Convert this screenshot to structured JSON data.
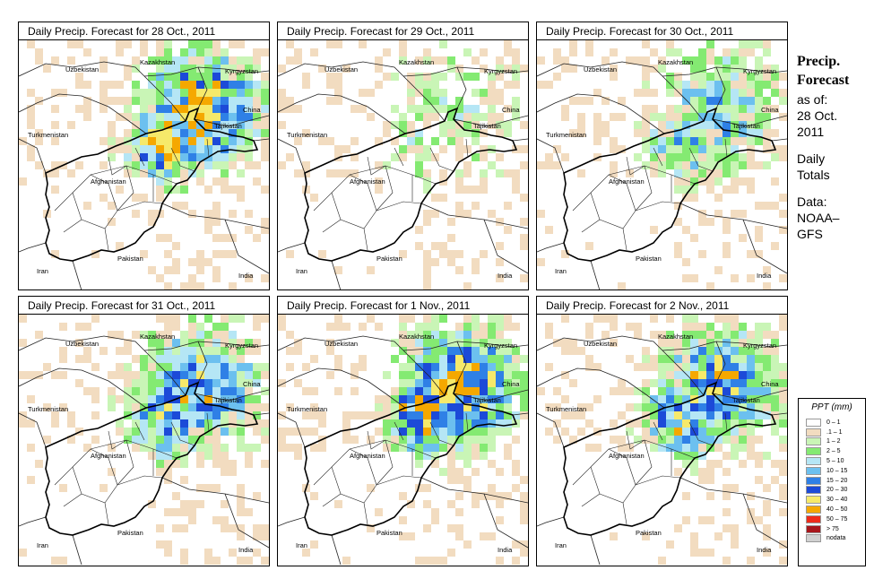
{
  "panels": [
    {
      "title": "Daily Precip. Forecast for  28 Oct., 2011",
      "seed": 11,
      "intensity": 1.0
    },
    {
      "title": "Daily Precip. Forecast for  29 Oct., 2011",
      "seed": 23,
      "intensity": 0.35
    },
    {
      "title": "Daily Precip. Forecast for  30 Oct., 2011",
      "seed": 37,
      "intensity": 0.6
    },
    {
      "title": "Daily Precip. Forecast for  31 Oct., 2011",
      "seed": 41,
      "intensity": 0.85
    },
    {
      "title": "Daily Precip. Forecast for  1 Nov., 2011",
      "seed": 53,
      "intensity": 1.0
    },
    {
      "title": "Daily Precip. Forecast for  2 Nov., 2011",
      "seed": 67,
      "intensity": 0.9
    }
  ],
  "country_labels": {
    "uzbekistan": "Uzbekistan",
    "kazakhstan": "Kazakhstan",
    "kyrgyzstan": "Kyrgyzstan",
    "turkmenistan": "Turkmenistan",
    "china": "China",
    "tajikistan": "Tajikistan",
    "afghanistan": "Afghanistan",
    "iran": "Iran",
    "pakistan": "Pakistan",
    "india": "India"
  },
  "sidebar": {
    "title_line1": "Precip.",
    "title_line2": "Forecast",
    "asof_line1": "as of:",
    "asof_line2": "28 Oct.",
    "asof_line3": "2011",
    "totals_line1": "Daily",
    "totals_line2": "Totals",
    "data_line1": "Data:",
    "data_line2": "NOAA–",
    "data_line3": "GFS"
  },
  "legend": {
    "title": "PPT (mm)",
    "items": [
      {
        "label": "0 – 1",
        "color": "#ffffff"
      },
      {
        "label": ".1 – 1",
        "color": "#f2dcc0"
      },
      {
        "label": "1 – 2",
        "color": "#c9f5b6"
      },
      {
        "label": "2 – 5",
        "color": "#84ea72"
      },
      {
        "label": "5 – 10",
        "color": "#b5e6f5"
      },
      {
        "label": "10 – 15",
        "color": "#6cc0ef"
      },
      {
        "label": "15 – 20",
        "color": "#2f80e6"
      },
      {
        "label": "20 – 30",
        "color": "#1c4ad8"
      },
      {
        "label": "30 – 40",
        "color": "#f6e96a"
      },
      {
        "label": "40 – 50",
        "color": "#f5a800"
      },
      {
        "label": "50 – 75",
        "color": "#ee2b1a"
      },
      {
        "label": "> 75",
        "color": "#a8161b"
      },
      {
        "label": "nodata",
        "color": "#d0d0d0"
      }
    ]
  }
}
